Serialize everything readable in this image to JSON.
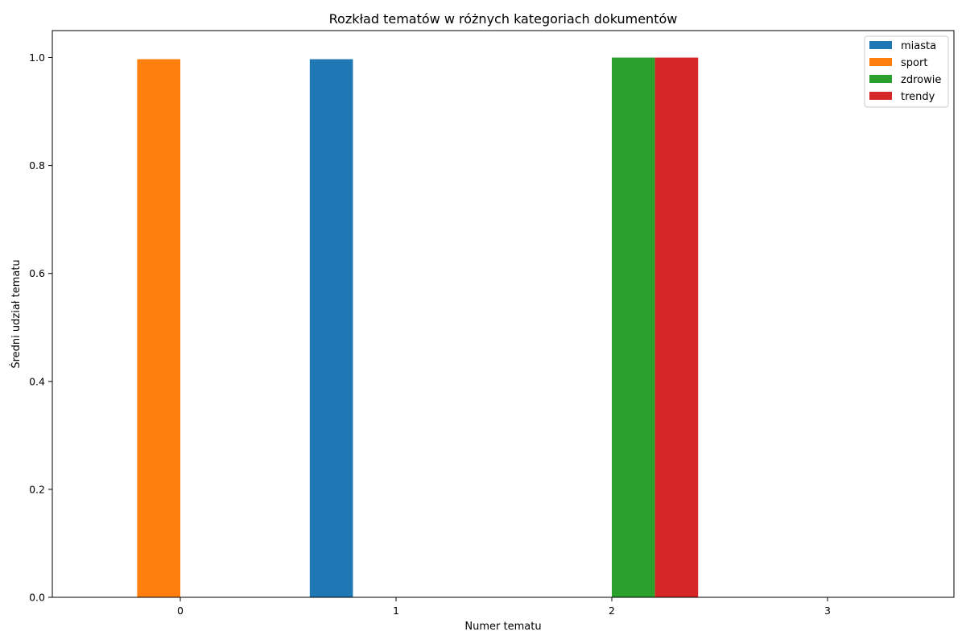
{
  "chart_data": {
    "type": "bar",
    "title": "Rozkład tematów w różnych kategoriach dokumentów",
    "xlabel": "Numer tematu",
    "ylabel": "Średni udział tematu",
    "categories": [
      "0",
      "1",
      "2",
      "3"
    ],
    "yticks": [
      "0.0",
      "0.2",
      "0.4",
      "0.6",
      "0.8",
      "1.0"
    ],
    "ylim": [
      0,
      1.05
    ],
    "grid": false,
    "legend_position": "top-right",
    "series": [
      {
        "name": "miasta",
        "color": "#1f77b4",
        "values": [
          0.0,
          0.997,
          0.0,
          0.0
        ]
      },
      {
        "name": "sport",
        "color": "#ff7f0e",
        "values": [
          0.997,
          0.0,
          0.0,
          0.0
        ]
      },
      {
        "name": "zdrowie",
        "color": "#2ca02c",
        "values": [
          0.0,
          0.0,
          1.0,
          0.0
        ]
      },
      {
        "name": "trendy",
        "color": "#d62728",
        "values": [
          0.0,
          0.0,
          1.0,
          0.0
        ]
      }
    ]
  }
}
